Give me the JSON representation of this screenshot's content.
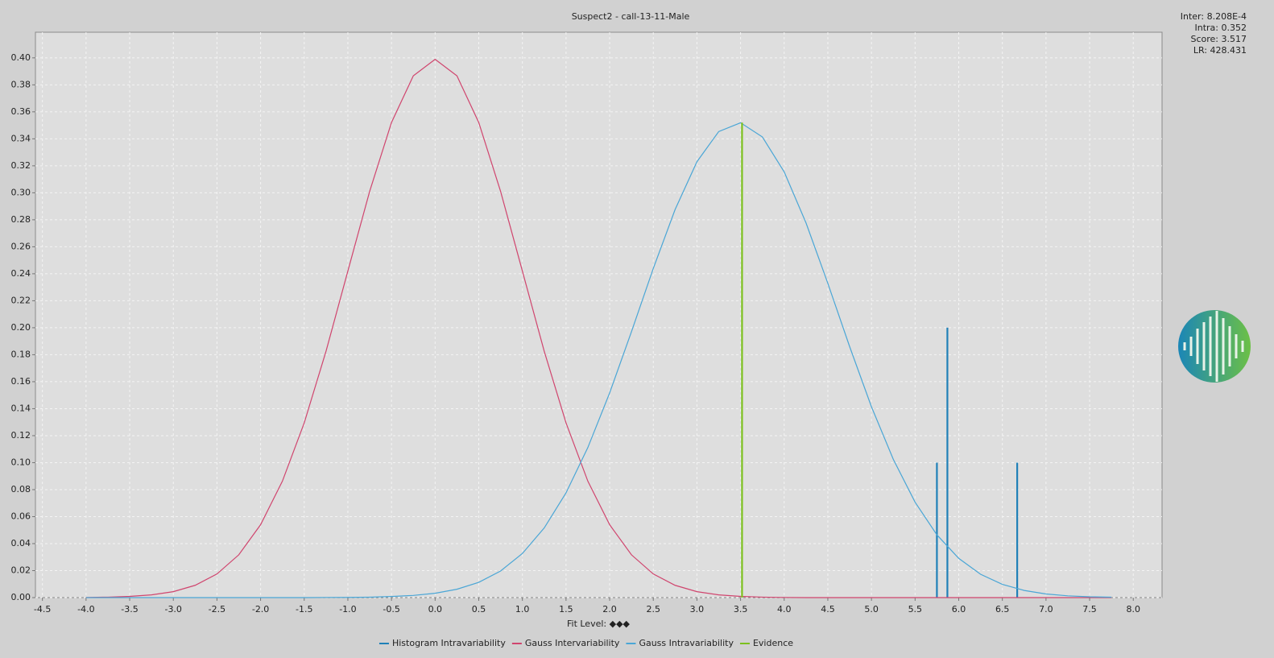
{
  "chart_data": {
    "type": "line",
    "title": "Suspect2 - call-13-11-Male",
    "xlabel": "Fit Level: ◆◆◆",
    "info": [
      "Inter: 8.208E-4",
      "Intra: 0.352",
      "Score: 3.517",
      "LR: 428.431"
    ],
    "xlim": [
      -4.58,
      8.33
    ],
    "ylim": [
      0,
      0.419
    ],
    "grid": true,
    "xticks": [
      -4.5,
      {
        "value": -4,
        "label": "-4.0"
      },
      -3.5,
      {
        "value": -3,
        "label": "-3.0"
      },
      -2.5,
      {
        "value": -2,
        "label": "-2.0"
      },
      -1.5,
      {
        "value": -1,
        "label": "-1.0"
      },
      -0.5,
      {
        "value": 0,
        "label": "0.0"
      },
      0.5,
      {
        "value": 1,
        "label": "1.0"
      },
      1.5,
      {
        "value": 2,
        "label": "2.0"
      },
      2.5,
      {
        "value": 3,
        "label": "3.0"
      },
      3.5,
      {
        "value": 4,
        "label": "4.0"
      },
      4.5,
      {
        "value": 5,
        "label": "5.0"
      },
      5.5,
      {
        "value": 6,
        "label": "6.0"
      },
      6.5,
      {
        "value": 7,
        "label": "7.0"
      },
      7.5,
      {
        "value": 8,
        "label": "8.0"
      }
    ],
    "yticks": [
      {
        "value": 0,
        "label": "0.00"
      },
      0.02,
      0.04,
      0.06,
      0.08,
      {
        "value": 0.1,
        "label": "0.10"
      },
      0.12,
      0.14,
      0.16,
      0.18,
      {
        "value": 0.2,
        "label": "0.20"
      },
      0.22,
      0.24,
      0.26,
      0.28,
      {
        "value": 0.3,
        "label": "0.30"
      },
      0.32,
      0.34,
      0.36,
      0.38,
      {
        "value": 0.4,
        "label": "0.40"
      }
    ],
    "x": [
      -4,
      -3.75,
      -3.5,
      -3.25,
      -3,
      -2.75,
      -2.5,
      -2.25,
      -2,
      -1.75,
      -1.5,
      -1.25,
      -1,
      -0.75,
      -0.5,
      -0.25,
      0,
      0.25,
      0.5,
      0.75,
      1,
      1.25,
      1.5,
      1.75,
      2,
      2.25,
      2.5,
      2.75,
      3,
      3.25,
      3.5,
      3.75,
      4,
      4.25,
      4.5,
      4.75,
      5,
      5.25,
      5.5,
      5.75,
      6,
      6.25,
      6.5,
      6.75,
      7,
      7.25,
      7.5,
      7.75
    ],
    "series": [
      {
        "name": "Histogram Intravariability",
        "color": "#1f80b8",
        "type": "impulse",
        "x": [
          5.75,
          5.87,
          6.67
        ],
        "values": [
          0.1,
          0.2,
          0.1
        ]
      },
      {
        "name": "Gauss Intervariability",
        "color": "#d0456e",
        "values": [
          0.0001,
          0.00035,
          0.0009,
          0.002,
          0.0044,
          0.0091,
          0.0175,
          0.0317,
          0.054,
          0.0863,
          0.1295,
          0.1826,
          0.242,
          0.3011,
          0.3521,
          0.3867,
          0.3989,
          0.3867,
          0.3521,
          0.3011,
          0.242,
          0.1826,
          0.1295,
          0.0863,
          0.054,
          0.0317,
          0.0175,
          0.0091,
          0.0044,
          0.002,
          0.0009,
          0.00035,
          0.0001,
          0,
          0,
          0,
          0,
          0,
          0,
          0,
          0,
          0,
          0,
          0,
          0,
          0,
          0,
          0
        ]
      },
      {
        "name": "Gauss Intravariability",
        "color": "#4aa6d6",
        "values": [
          0,
          0,
          0,
          0,
          0,
          0,
          0,
          0,
          0,
          0,
          0,
          0.0001,
          0.00015,
          0.0003,
          0.0008,
          0.0016,
          0.0032,
          0.0062,
          0.0113,
          0.0197,
          0.0327,
          0.0516,
          0.0776,
          0.1112,
          0.1517,
          0.1971,
          0.2439,
          0.2876,
          0.323,
          0.3454,
          0.3519,
          0.3414,
          0.3155,
          0.2777,
          0.2329,
          0.186,
          0.1414,
          0.1025,
          0.0707,
          0.0465,
          0.0291,
          0.0173,
          0.0098,
          0.0053,
          0.0027,
          0.0013,
          0.0006,
          0.0003
        ]
      },
      {
        "name": "Evidence",
        "color": "#7cc11e",
        "type": "impulse",
        "x": [
          3.517
        ],
        "values": [
          0.352
        ]
      }
    ]
  }
}
